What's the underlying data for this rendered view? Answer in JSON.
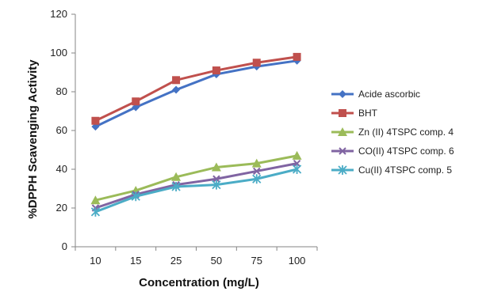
{
  "chart_data": {
    "type": "line",
    "title": "",
    "xlabel": "Concentration (mg/L)",
    "ylabel": "%DPPH Scavenging Activity",
    "categories": [
      "10",
      "15",
      "25",
      "50",
      "75",
      "100"
    ],
    "ylim": [
      0,
      120
    ],
    "yticks": [
      "0",
      "20",
      "40",
      "60",
      "80",
      "100",
      "120"
    ],
    "grid": false,
    "legend_position": "right",
    "series": [
      {
        "name": "Acide ascorbic",
        "color": "#4472C4",
        "marker": "diamond",
        "values": [
          62,
          72,
          81,
          89,
          93,
          96
        ]
      },
      {
        "name": "BHT",
        "color": "#C0504D",
        "marker": "square",
        "values": [
          65,
          75,
          86,
          91,
          95,
          98
        ]
      },
      {
        "name": "Zn (II) 4TSPC comp. 4",
        "color": "#9BBB59",
        "marker": "triangle",
        "values": [
          24,
          29,
          36,
          41,
          43,
          47
        ]
      },
      {
        "name": "CO(II) 4TSPC comp. 6",
        "color": "#8064A2",
        "marker": "x",
        "values": [
          20,
          27,
          32,
          35,
          39,
          43
        ]
      },
      {
        "name": "Cu(II) 4TSPC comp. 5",
        "color": "#4BACC6",
        "marker": "star",
        "values": [
          18,
          26,
          31,
          32,
          35,
          40
        ]
      }
    ]
  }
}
